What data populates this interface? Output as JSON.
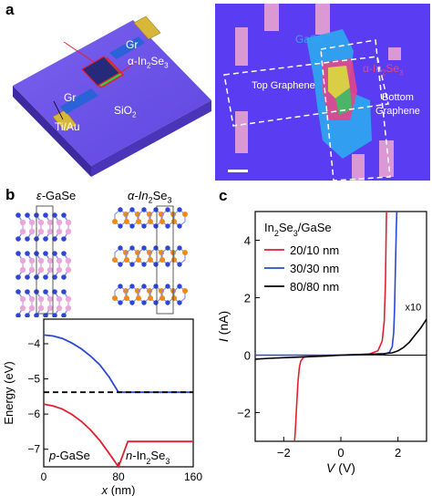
{
  "panel_a": {
    "letter": "a",
    "device_labels": {
      "gase": "GaSe",
      "gr_top": "Gr",
      "gr_bottom": "Gr",
      "in2se3_prefix": "α-In",
      "in2se3_sub1": "2",
      "in2se3_mid": "Se",
      "in2se3_sub2": "3",
      "sio2_prefix": "SiO",
      "sio2_sub": "2",
      "electrode": "Ti/Au"
    },
    "micrograph_labels": {
      "gase": "GaSe",
      "in2se3_prefix": "α-In",
      "in2se3_sub1": "2",
      "in2se3_mid": "Se",
      "in2se3_sub2": "3",
      "top_graphene": "Top Graphene",
      "bottom_line1": "Bottom",
      "bottom_line2": "Graphene"
    },
    "colors": {
      "substrate": "#6f55e6",
      "micrograph_bg": "#5a3df2",
      "electrode": "#d8b63a",
      "graphene": "#2a62d8",
      "gase_flake": "#2fa6f0",
      "in2se3_flake": "#e2458a"
    }
  },
  "panel_b": {
    "letter": "b",
    "struct_left_prefix": "ε-",
    "struct_left_name": "GaSe",
    "struct_right_prefix": "α-In",
    "struct_right_sub1": "2",
    "struct_right_mid": "Se",
    "struct_right_sub2": "3",
    "p_side_label_italic": "p",
    "p_side_label_rest": "-GaSe",
    "n_side_label_italic": "n",
    "n_side_label_rest": "-In",
    "n_side_sub1": "2",
    "n_side_mid": "Se",
    "n_side_sub2": "3",
    "colors": {
      "se": "#2f45d8",
      "ga": "#e9a8d9",
      "in": "#ee8a16"
    }
  },
  "chart_data": [
    {
      "type": "line",
      "title": "",
      "xlabel_italic": "x",
      "xlabel_rest": " (nm)",
      "ylabel": "Energy (eV)",
      "xlim": [
        0,
        160
      ],
      "ylim": [
        -7.5,
        -3.3
      ],
      "xticks": [
        "0",
        "80",
        "160"
      ],
      "yticks": [
        "-4",
        "-5",
        "-6",
        "-7"
      ],
      "x": [
        0,
        10,
        20,
        30,
        40,
        50,
        60,
        70,
        80,
        90,
        100,
        110,
        120,
        130,
        140,
        150,
        160
      ],
      "series": [
        {
          "values": [
            -3.75,
            -3.78,
            -3.85,
            -3.98,
            -4.14,
            -4.35,
            -4.6,
            -4.95,
            -5.38,
            -5.38,
            -5.38,
            -5.38,
            -5.38,
            -5.38,
            -5.38,
            -5.38,
            -5.38
          ],
          "color": "#2a48d4"
        },
        {
          "values": [
            -5.72,
            -5.77,
            -5.86,
            -6.01,
            -6.2,
            -6.45,
            -6.75,
            -7.12,
            -7.5,
            -6.78,
            -6.78,
            -6.78,
            -6.78,
            -6.78,
            -6.78,
            -6.78,
            -6.78
          ],
          "color": "#e02030"
        },
        {
          "values": [
            -5.38,
            -5.38,
            -5.38,
            -5.38,
            -5.38,
            -5.38,
            -5.38,
            -5.38,
            -5.38,
            -5.38,
            -5.38,
            -5.38,
            -5.38,
            -5.38,
            -5.38,
            -5.38,
            -5.38
          ],
          "color": "#000000",
          "style": "dashed"
        }
      ]
    },
    {
      "type": "line",
      "panel_letter": "c",
      "xlabel_italic": "V",
      "xlabel_rest": " (V)",
      "ylabel_italic": "I",
      "ylabel_rest": " (nA)",
      "xlim": [
        -3,
        3
      ],
      "ylim": [
        -3,
        5
      ],
      "xticks": [
        "-2",
        "0",
        "2"
      ],
      "yticks": [
        "-2",
        "0",
        "2",
        "4"
      ],
      "legend_title_prefix": "In",
      "legend_title_sub1": "2",
      "legend_title_mid": "Se",
      "legend_title_sub2": "3",
      "legend_title_suffix": "/GaSe",
      "legend_position": "top-left",
      "annotation": "x10",
      "series": [
        {
          "name": "20/10 nm",
          "color": "#e02030",
          "x": [
            -1.62,
            -1.6,
            -1.55,
            -1.5,
            -1.45,
            -1.4,
            -1.3,
            -1.0,
            -0.5,
            0,
            0.5,
            1.0,
            1.3,
            1.45,
            1.52,
            1.56,
            1.58,
            1.59,
            1.6
          ],
          "y": [
            -3.0,
            -2.7,
            -1.8,
            -0.9,
            -0.4,
            -0.2,
            -0.07,
            -0.03,
            -0.01,
            0,
            0.01,
            0.04,
            0.15,
            0.5,
            1.2,
            2.5,
            3.8,
            4.5,
            5.0
          ]
        },
        {
          "name": "30/30 nm",
          "color": "#2a48d4",
          "x": [
            -3,
            -2,
            -1,
            0,
            1.0,
            1.5,
            1.7,
            1.8,
            1.85,
            1.88,
            1.9,
            1.92,
            1.94,
            1.96
          ],
          "y": [
            0,
            0,
            0,
            0,
            0.01,
            0.03,
            0.1,
            0.3,
            0.8,
            1.6,
            2.5,
            3.5,
            4.4,
            5.0
          ]
        },
        {
          "name": "80/80 nm",
          "color": "#000000",
          "x": [
            -3,
            -2.5,
            -2,
            -1.5,
            -1,
            -0.5,
            0,
            0.5,
            1.0,
            1.5,
            1.8,
            2.0,
            2.2,
            2.4,
            2.6,
            2.8,
            2.9,
            3.0
          ],
          "y": [
            -0.14,
            -0.11,
            -0.09,
            -0.07,
            -0.05,
            -0.03,
            0,
            0.02,
            0.03,
            0.05,
            0.08,
            0.15,
            0.27,
            0.45,
            0.7,
            0.95,
            1.1,
            1.25
          ]
        }
      ]
    }
  ]
}
